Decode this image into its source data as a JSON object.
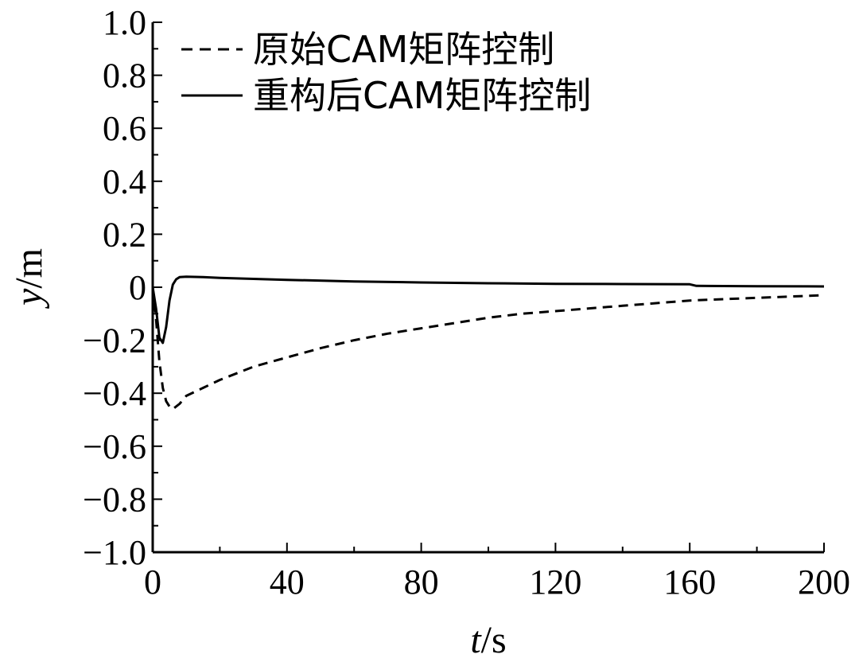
{
  "chart_data": {
    "type": "line",
    "xlabel_var": "t",
    "xlabel_unit": "/s",
    "ylabel_var": "y",
    "ylabel_unit": "/m",
    "xlim": [
      0,
      200
    ],
    "ylim": [
      -1.0,
      1.0
    ],
    "xticks": [
      0,
      40,
      80,
      120,
      160,
      200
    ],
    "xtick_labels": [
      "0",
      "40",
      "80",
      "120",
      "160",
      "200"
    ],
    "yticks": [
      1.0,
      0.8,
      0.6,
      0.4,
      0.2,
      0,
      -0.2,
      -0.4,
      -0.6,
      -0.8,
      -1.0
    ],
    "ytick_labels": [
      "1.0",
      "0.8",
      "0.6",
      "0.4",
      "0.2",
      "0",
      "−0.2",
      "−0.4",
      "−0.6",
      "−0.8",
      "−1.0"
    ],
    "grid": false,
    "legend_position": "top-left",
    "series": [
      {
        "name": "原始CAM矩阵控制",
        "style": "dashed",
        "color": "#000000",
        "x": [
          0,
          1,
          2,
          3,
          4,
          5,
          6,
          8,
          10,
          15,
          20,
          30,
          40,
          50,
          60,
          70,
          80,
          90,
          100,
          110,
          120,
          130,
          140,
          150,
          160,
          170,
          180,
          190,
          200
        ],
        "y": [
          0,
          -0.12,
          -0.28,
          -0.38,
          -0.43,
          -0.45,
          -0.46,
          -0.44,
          -0.41,
          -0.38,
          -0.35,
          -0.3,
          -0.265,
          -0.23,
          -0.2,
          -0.175,
          -0.155,
          -0.135,
          -0.115,
          -0.1,
          -0.09,
          -0.08,
          -0.07,
          -0.06,
          -0.05,
          -0.045,
          -0.04,
          -0.035,
          -0.03
        ]
      },
      {
        "name": "重构后CAM矩阵控制",
        "style": "solid",
        "color": "#000000",
        "x": [
          0,
          1,
          2,
          3,
          4,
          5,
          6,
          7,
          8,
          10,
          15,
          20,
          40,
          60,
          80,
          100,
          120,
          140,
          160,
          162,
          180,
          200
        ],
        "y": [
          0,
          -0.08,
          -0.19,
          -0.21,
          -0.15,
          -0.05,
          0.01,
          0.03,
          0.038,
          0.04,
          0.038,
          0.035,
          0.028,
          0.022,
          0.018,
          0.015,
          0.013,
          0.012,
          0.011,
          0.005,
          0.004,
          0.003
        ]
      }
    ]
  }
}
